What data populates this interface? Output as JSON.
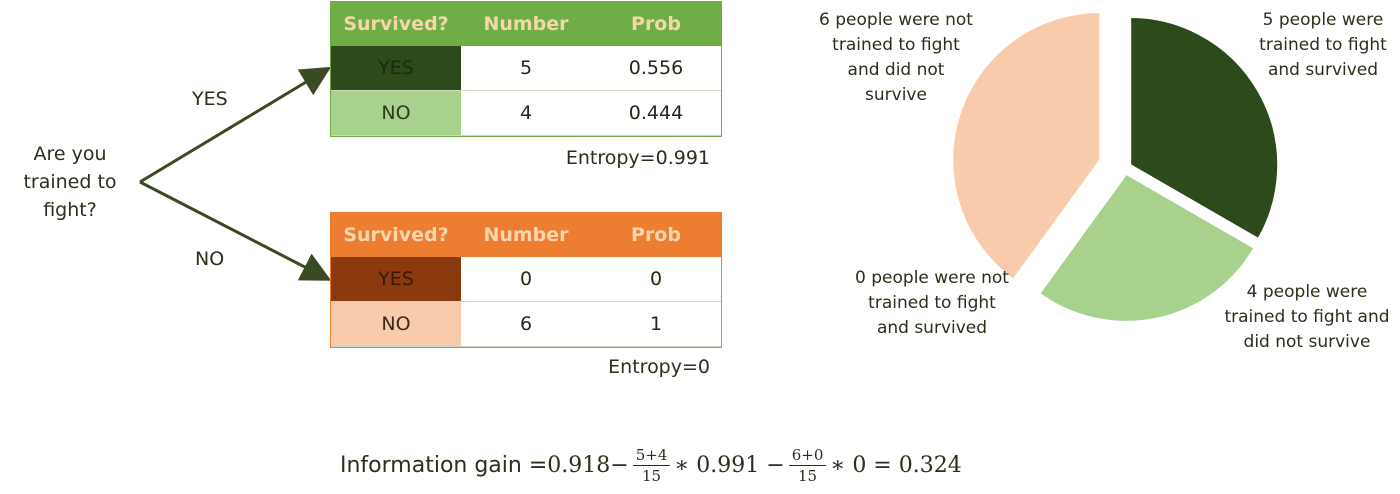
{
  "question": "Are you trained to fight?",
  "branches": {
    "yes": "YES",
    "no": "NO"
  },
  "table_yes": {
    "headers": [
      "Survived?",
      "Number",
      "Prob"
    ],
    "rows": [
      {
        "label": "YES",
        "number": "5",
        "prob": "0.556"
      },
      {
        "label": "NO",
        "number": "4",
        "prob": "0.444"
      }
    ],
    "entropy": "Entropy=0.991"
  },
  "table_no": {
    "headers": [
      "Survived?",
      "Number",
      "Prob"
    ],
    "rows": [
      {
        "label": "YES",
        "number": "0",
        "prob": "0"
      },
      {
        "label": "NO",
        "number": "6",
        "prob": "1"
      }
    ],
    "entropy": "Entropy=0"
  },
  "pie": {
    "labels": {
      "trained_survived": "5 people were trained to fight and survived",
      "trained_not_survived": "4 people were trained to fight and did not survive",
      "untrained_survived": "0 people were not trained to fight and survived",
      "untrained_not_survived": "6 people were not trained to fight and did not survive"
    },
    "values": {
      "trained_survived": 5,
      "trained_not_survived": 4,
      "untrained_survived": 0,
      "untrained_not_survived": 6
    },
    "colors": {
      "trained_survived": "#2d4a1a",
      "trained_not_survived": "#a9d18e",
      "untrained_not_survived": "#f8cbad"
    }
  },
  "formula": {
    "prefix": "Information gain = ",
    "base": "0.918",
    "minus1": " − ",
    "frac1_num": "5+4",
    "frac1_den": "15",
    "times1": " ∗ 0.991 − ",
    "frac2_num": "6+0",
    "frac2_den": "15",
    "times2": " ∗ 0 = 0.324"
  },
  "colors": {
    "green_header": "#70ad47",
    "orange_header": "#ed7d31",
    "arrow": "#3a4a22"
  }
}
